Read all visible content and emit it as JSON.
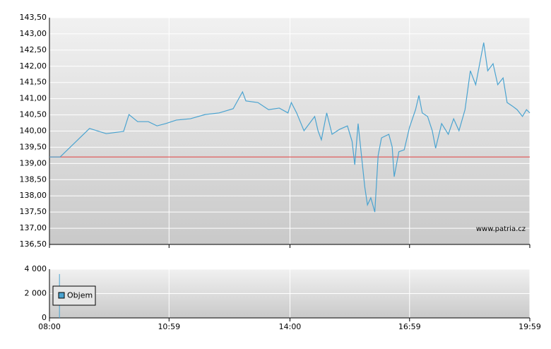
{
  "chart_data": [
    {
      "type": "line",
      "xlim": [
        480,
        1199
      ],
      "ylim": [
        136.5,
        143.5
      ],
      "yticks": [
        {
          "value": 136.5,
          "label": "136,50"
        },
        {
          "value": 137,
          "label": "137,00"
        },
        {
          "value": 137.5,
          "label": "137,50"
        },
        {
          "value": 138,
          "label": "138,00"
        },
        {
          "value": 138.5,
          "label": "138,50"
        },
        {
          "value": 139,
          "label": "139,00"
        },
        {
          "value": 139.5,
          "label": "139,50"
        },
        {
          "value": 140,
          "label": "140,00"
        },
        {
          "value": 140.5,
          "label": "140,50"
        },
        {
          "value": 141,
          "label": "141,00"
        },
        {
          "value": 141.5,
          "label": "141,50"
        },
        {
          "value": 142,
          "label": "142,00"
        },
        {
          "value": 142.5,
          "label": "142,50"
        },
        {
          "value": 143,
          "label": "143,00"
        },
        {
          "value": 143.5,
          "label": "143,50"
        }
      ],
      "grid": true,
      "reference": {
        "value": 139.2,
        "color": "#e05050"
      },
      "annotation": "www.patria.cz",
      "series": [
        {
          "color": "#4aa3d0",
          "x": [
            480,
            496,
            540,
            565,
            591,
            599,
            612,
            628,
            641,
            654,
            670,
            691,
            713,
            734,
            755,
            769,
            774,
            792,
            808,
            824,
            837,
            842,
            850,
            861,
            869,
            877,
            882,
            887,
            895,
            903,
            914,
            926,
            933,
            937,
            942,
            947,
            952,
            956,
            961,
            967,
            972,
            977,
            988,
            993,
            996,
            1003,
            1011,
            1019,
            1028,
            1033,
            1038,
            1046,
            1053,
            1058,
            1067,
            1077,
            1085,
            1093,
            1102,
            1110,
            1118,
            1125,
            1130,
            1136,
            1144,
            1151,
            1159,
            1165,
            1173,
            1180,
            1188,
            1194,
            1199
          ],
          "values": [
            139.2,
            139.2,
            140.08,
            139.92,
            139.99,
            140.51,
            140.29,
            140.29,
            140.16,
            140.23,
            140.34,
            140.38,
            140.51,
            140.56,
            140.69,
            141.21,
            140.93,
            140.88,
            140.66,
            140.71,
            140.56,
            140.88,
            140.56,
            140.01,
            140.23,
            140.45,
            140.01,
            139.73,
            140.56,
            139.9,
            140.05,
            140.16,
            139.68,
            138.96,
            140.23,
            139.25,
            138.27,
            137.72,
            137.94,
            137.5,
            139.25,
            139.79,
            139.9,
            139.51,
            138.59,
            139.36,
            139.42,
            140.12,
            140.66,
            141.1,
            140.56,
            140.45,
            140.01,
            139.47,
            140.23,
            139.9,
            140.38,
            140.01,
            140.66,
            141.86,
            141.43,
            142.19,
            142.73,
            141.86,
            142.08,
            141.43,
            141.64,
            140.88,
            140.77,
            140.66,
            140.45,
            140.66,
            140.56
          ]
        }
      ]
    },
    {
      "type": "bar",
      "xlim": [
        480,
        1199
      ],
      "xticks": [
        {
          "value": 480,
          "label": "08:00"
        },
        {
          "value": 659,
          "label": "10:59"
        },
        {
          "value": 840,
          "label": "14:00"
        },
        {
          "value": 1019,
          "label": "16:59"
        },
        {
          "value": 1199,
          "label": "19:59"
        }
      ],
      "ylim": [
        0,
        4000
      ],
      "yticks": [
        0,
        {
          "value": 2000,
          "label": "2 000"
        },
        {
          "value": 4000,
          "label": "4 000"
        }
      ],
      "grid": true,
      "series": [
        {
          "name": "Objem",
          "color": "#4aa3d0",
          "x": [
            495
          ],
          "values": [
            3600
          ]
        }
      ]
    }
  ]
}
